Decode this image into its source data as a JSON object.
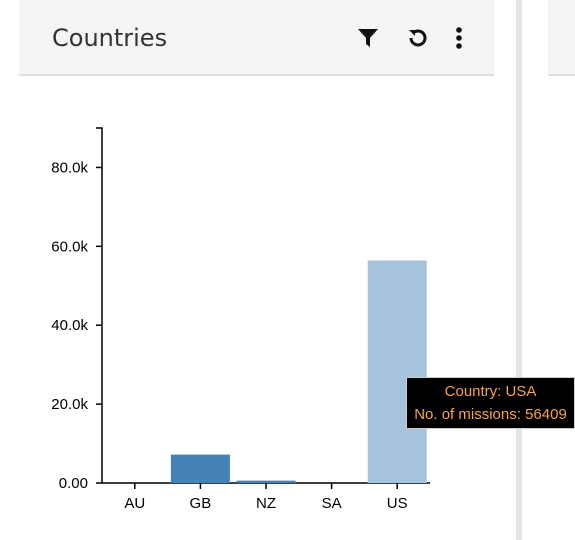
{
  "panel": {
    "title": "Countries",
    "actions": [
      {
        "name": "filter-icon"
      },
      {
        "name": "reset-icon"
      },
      {
        "name": "more-options-icon"
      }
    ]
  },
  "chart_data": {
    "type": "bar",
    "categories": [
      "AU",
      "GB",
      "NZ",
      "SA",
      "US"
    ],
    "values": [
      0,
      7200,
      600,
      0,
      56409
    ],
    "y_ticks": [
      "0.00",
      "20.0k",
      "40.0k",
      "60.0k",
      "80.0k"
    ],
    "ylim": [
      0,
      90000
    ],
    "colors": {
      "GB": "#4682b4",
      "NZ": "#4682b4",
      "US": "#a6c2dc",
      "default": "#4682b4"
    }
  },
  "tooltip": {
    "line1": "Country: USA",
    "line2": "No. of missions: 56409"
  }
}
